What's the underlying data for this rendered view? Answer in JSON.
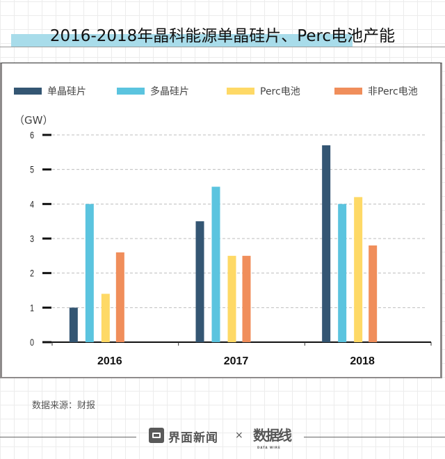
{
  "title": "2016-2018年晶科能源单晶硅片、Perc电池产能",
  "unit_label": "（GW）",
  "source": "数据来源：财报",
  "footer": {
    "brand": "界面新闻",
    "times": "×",
    "partner": "数据线",
    "partner_sub": "DATA WIRE"
  },
  "colors": {
    "title_highlight": "#a8dcea",
    "series": [
      "#345673",
      "#5bc4df",
      "#fed966",
      "#f08e5b"
    ]
  },
  "chart_data": {
    "type": "bar",
    "title": "2016-2018年晶科能源单晶硅片、Perc电池产能",
    "xlabel": "",
    "ylabel": "（GW）",
    "ylim": [
      0,
      6
    ],
    "yticks": [
      0,
      1,
      2,
      3,
      4,
      5,
      6
    ],
    "grid": true,
    "legend_position": "top",
    "categories": [
      "2016",
      "2017",
      "2018"
    ],
    "series": [
      {
        "name": "单晶硅片",
        "values": [
          1.0,
          3.5,
          5.7
        ]
      },
      {
        "name": "多晶硅片",
        "values": [
          4.0,
          4.5,
          4.0
        ]
      },
      {
        "name": "Perc电池",
        "values": [
          1.4,
          2.5,
          4.2
        ]
      },
      {
        "name": "非Perc电池",
        "values": [
          2.6,
          2.5,
          2.8
        ]
      }
    ]
  }
}
